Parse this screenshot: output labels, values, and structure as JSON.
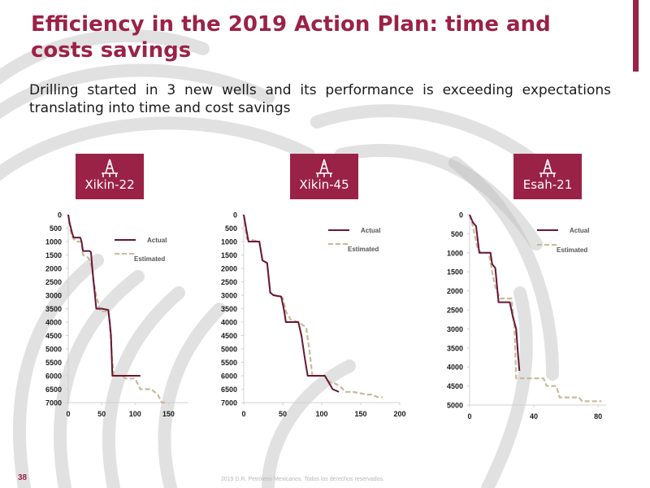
{
  "slide": {
    "title": "Efficiency in the 2019 Action Plan: time and costs savings",
    "subtitle": "Drilling started in 3 new wells and its performance is exceeding expectations translating into time and cost savings",
    "page_number": "38",
    "footer": "2019 D.R. Petróleos Mexicanos. Todos los derechos reservados."
  },
  "wells": [
    {
      "name": "Xikin-22",
      "icon": "drilling-rig-icon"
    },
    {
      "name": "Xikin-45",
      "icon": "drilling-rig-icon"
    },
    {
      "name": "Esah-21",
      "icon": "drilling-rig-icon"
    }
  ],
  "colors": {
    "accent": "#9b2247",
    "actual": "#6b1533",
    "estimated": "#c8b99a",
    "pattern": "#bcbcbc"
  },
  "chart_data": [
    {
      "type": "line",
      "xlim": [
        0,
        180
      ],
      "ylim": [
        7000,
        0
      ],
      "xticks": [
        0,
        50,
        100,
        150
      ],
      "yticks": [
        0,
        500,
        1000,
        1500,
        2000,
        2500,
        3000,
        3500,
        4000,
        4500,
        5000,
        5500,
        6000,
        6500,
        7000
      ],
      "legend_position": "top-right",
      "series": [
        {
          "name": "Actual",
          "points": [
            [
              0,
              0
            ],
            [
              2,
              300
            ],
            [
              4,
              500
            ],
            [
              6,
              700
            ],
            [
              8,
              850
            ],
            [
              18,
              850
            ],
            [
              20,
              1000
            ],
            [
              22,
              1350
            ],
            [
              32,
              1350
            ],
            [
              34,
              1400
            ],
            [
              36,
              2000
            ],
            [
              38,
              2500
            ],
            [
              40,
              3000
            ],
            [
              42,
              3500
            ],
            [
              50,
              3500
            ],
            [
              60,
              3550
            ],
            [
              62,
              4000
            ],
            [
              64,
              4500
            ],
            [
              65,
              5200
            ],
            [
              66,
              6000
            ],
            [
              78,
              6000
            ],
            [
              100,
              6000
            ],
            [
              108,
              6000
            ]
          ]
        },
        {
          "name": "Estimated",
          "points": [
            [
              0,
              0
            ],
            [
              5,
              800
            ],
            [
              12,
              1000
            ],
            [
              18,
              1000
            ],
            [
              20,
              1050
            ],
            [
              22,
              1500
            ],
            [
              30,
              1600
            ],
            [
              36,
              2000
            ],
            [
              38,
              2500
            ],
            [
              42,
              3000
            ],
            [
              48,
              3600
            ],
            [
              60,
              3600
            ],
            [
              62,
              4000
            ],
            [
              66,
              5500
            ],
            [
              68,
              6000
            ],
            [
              80,
              6000
            ],
            [
              86,
              6100
            ],
            [
              100,
              6100
            ],
            [
              108,
              6500
            ],
            [
              124,
              6500
            ],
            [
              134,
              6700
            ],
            [
              140,
              7000
            ],
            [
              145,
              7000
            ]
          ]
        }
      ]
    },
    {
      "type": "line",
      "xlim": [
        0,
        200
      ],
      "ylim": [
        7000,
        0
      ],
      "xticks": [
        0,
        50,
        100,
        150,
        200
      ],
      "yticks": [
        0,
        500,
        1000,
        1500,
        2000,
        2500,
        3000,
        3500,
        4000,
        4500,
        5000,
        5500,
        6000,
        6500,
        7000
      ],
      "legend_position": "top-right",
      "series": [
        {
          "name": "Actual",
          "points": [
            [
              0,
              0
            ],
            [
              6,
              1000
            ],
            [
              20,
              1000
            ],
            [
              24,
              1700
            ],
            [
              30,
              1800
            ],
            [
              34,
              2900
            ],
            [
              38,
              3000
            ],
            [
              48,
              3050
            ],
            [
              52,
              3600
            ],
            [
              54,
              4000
            ],
            [
              70,
              4000
            ],
            [
              74,
              4500
            ],
            [
              78,
              5300
            ],
            [
              82,
              6000
            ],
            [
              104,
              6000
            ],
            [
              110,
              6300
            ],
            [
              114,
              6500
            ],
            [
              122,
              6600
            ]
          ]
        },
        {
          "name": "Estimated",
          "points": [
            [
              0,
              0
            ],
            [
              4,
              900
            ],
            [
              20,
              1000
            ],
            [
              24,
              1700
            ],
            [
              30,
              1800
            ],
            [
              34,
              2900
            ],
            [
              40,
              3000
            ],
            [
              50,
              3100
            ],
            [
              54,
              3600
            ],
            [
              60,
              3900
            ],
            [
              70,
              4000
            ],
            [
              80,
              4200
            ],
            [
              84,
              5000
            ],
            [
              88,
              6000
            ],
            [
              96,
              6000
            ],
            [
              104,
              6000
            ],
            [
              108,
              6200
            ],
            [
              118,
              6300
            ],
            [
              124,
              6400
            ],
            [
              130,
              6600
            ],
            [
              140,
              6600
            ],
            [
              158,
              6700
            ],
            [
              164,
              6700
            ],
            [
              172,
              6800
            ],
            [
              178,
              6800
            ]
          ]
        }
      ]
    },
    {
      "type": "line",
      "xlim": [
        0,
        85
      ],
      "ylim": [
        5000,
        0
      ],
      "xticks": [
        0,
        40,
        80
      ],
      "yticks": [
        0,
        500,
        1000,
        1500,
        2000,
        2500,
        3000,
        3500,
        4000,
        4500,
        5000
      ],
      "legend_position": "top-right",
      "series": [
        {
          "name": "Actual",
          "points": [
            [
              0,
              0
            ],
            [
              2,
              200
            ],
            [
              4,
              300
            ],
            [
              6,
              1000
            ],
            [
              13,
              1000
            ],
            [
              14,
              1300
            ],
            [
              16,
              1400
            ],
            [
              18,
              2300
            ],
            [
              25,
              2300
            ],
            [
              27,
              2700
            ],
            [
              29,
              3000
            ],
            [
              30,
              3600
            ],
            [
              31,
              4100
            ]
          ]
        },
        {
          "name": "Estimated",
          "points": [
            [
              0,
              0
            ],
            [
              2,
              300
            ],
            [
              5,
              900
            ],
            [
              7,
              1000
            ],
            [
              12,
              1000
            ],
            [
              14,
              1500
            ],
            [
              16,
              1900
            ],
            [
              19,
              2200
            ],
            [
              26,
              2200
            ],
            [
              28,
              3000
            ],
            [
              29,
              4300
            ],
            [
              46,
              4300
            ],
            [
              48,
              4500
            ],
            [
              54,
              4500
            ],
            [
              56,
              4800
            ],
            [
              68,
              4800
            ],
            [
              70,
              4900
            ],
            [
              82,
              4900
            ]
          ]
        }
      ]
    }
  ]
}
